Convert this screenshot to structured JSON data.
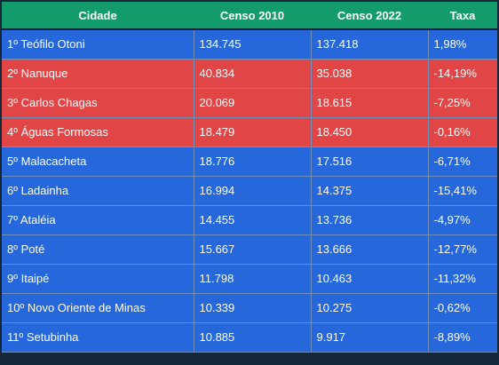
{
  "header": {
    "cidade": "Cidade",
    "censo2010": "Censo 2010",
    "censo2022": "Censo 2022",
    "taxa": "Taxa"
  },
  "colors": {
    "header": "#149b6b",
    "positive": "#2667dc",
    "negative": "#e24545"
  },
  "rows": [
    {
      "cidade": "1º Teófilo Otoni",
      "censo2010": "134.745",
      "censo2022": "137.418",
      "taxa": "1,98%",
      "highlight": "blue"
    },
    {
      "cidade": "2º Nanuque",
      "censo2010": "40.834",
      "censo2022": "35.038",
      "taxa": "-14,19%",
      "highlight": "red"
    },
    {
      "cidade": "3º Carlos Chagas",
      "censo2010": "20.069",
      "censo2022": "18.615",
      "taxa": "-7,25%",
      "highlight": "red"
    },
    {
      "cidade": "4º Águas Formosas",
      "censo2010": "18.479",
      "censo2022": "18.450",
      "taxa": "-0,16%",
      "highlight": "red"
    },
    {
      "cidade": "5º Malacacheta",
      "censo2010": "18.776",
      "censo2022": "17.516",
      "taxa": "-6,71%",
      "highlight": "blue"
    },
    {
      "cidade": "6º Ladainha",
      "censo2010": "16.994",
      "censo2022": "14.375",
      "taxa": "-15,41%",
      "highlight": "blue"
    },
    {
      "cidade": "7º Ataléia",
      "censo2010": "14.455",
      "censo2022": "13.736",
      "taxa": "-4,97%",
      "highlight": "blue"
    },
    {
      "cidade": "8º Poté",
      "censo2010": "15.667",
      "censo2022": "13.666",
      "taxa": "-12,77%",
      "highlight": "blue"
    },
    {
      "cidade": "9º Itaipé",
      "censo2010": "11.798",
      "censo2022": "10.463",
      "taxa": "-11,32%",
      "highlight": "blue"
    },
    {
      "cidade": "10º Novo Oriente de Minas",
      "censo2010": "10.339",
      "censo2022": "10.275",
      "taxa": "-0,62%",
      "highlight": "blue"
    },
    {
      "cidade": "11º Setubinha",
      "censo2010": "10.885",
      "censo2022": "9.917",
      "taxa": "-8,89%",
      "highlight": "blue"
    }
  ]
}
